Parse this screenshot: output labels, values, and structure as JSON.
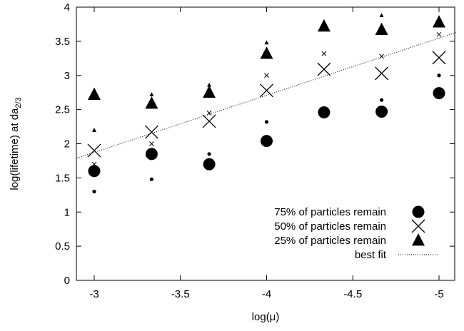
{
  "chart_data": {
    "type": "scatter",
    "xlabel": "log(μ)",
    "ylabel": {
      "main": "log(lifetime) at da",
      "subscript": "2/3"
    },
    "x_reversed": true,
    "xlim": [
      -3,
      -5
    ],
    "ylim": [
      0,
      4
    ],
    "x_ticks": [
      -3,
      -3.5,
      -4,
      -4.5,
      -5
    ],
    "x_tick_labels": [
      "-3",
      "-3.5",
      "-4",
      "-4.5",
      "-5"
    ],
    "y_ticks": [
      0,
      0.5,
      1,
      1.5,
      2,
      2.5,
      3,
      3.5,
      4
    ],
    "y_tick_labels": [
      "0",
      "0.5",
      "1",
      "1.5",
      "2",
      "2.5",
      "3",
      "3.5",
      "4"
    ],
    "grid": false,
    "legend_position": "bottom-right",
    "series": [
      {
        "name": "75% of particles remain",
        "marker": "circle",
        "x": [
          -3,
          -3.333,
          -3.667,
          -4,
          -4.333,
          -4.667,
          -5
        ],
        "y": [
          1.6,
          1.85,
          1.7,
          2.04,
          2.46,
          2.47,
          2.74
        ],
        "y_spread": [
          1.3,
          1.48,
          1.85,
          2.32,
          null,
          2.64,
          3.0
        ]
      },
      {
        "name": "50% of particles remain",
        "marker": "cross",
        "x": [
          -3,
          -3.333,
          -3.667,
          -4,
          -4.333,
          -4.667,
          -5
        ],
        "y": [
          1.9,
          2.17,
          2.33,
          2.78,
          3.09,
          3.03,
          3.26
        ],
        "y_spread": [
          1.7,
          2.0,
          2.45,
          3.0,
          3.32,
          3.28,
          3.6
        ]
      },
      {
        "name": "25% of particles remain",
        "marker": "triangle",
        "x": [
          -3,
          -3.333,
          -3.667,
          -4,
          -4.333,
          -4.667,
          -5
        ],
        "y": [
          2.72,
          2.59,
          2.75,
          3.32,
          3.72,
          3.67,
          3.78
        ],
        "y_spread": [
          2.2,
          2.72,
          2.86,
          3.48,
          null,
          3.88,
          null
        ]
      },
      {
        "name": "best fit",
        "marker": "dotted-line",
        "x": [
          -2.9,
          -5.1
        ],
        "y": [
          1.79,
          3.63
        ]
      }
    ]
  }
}
